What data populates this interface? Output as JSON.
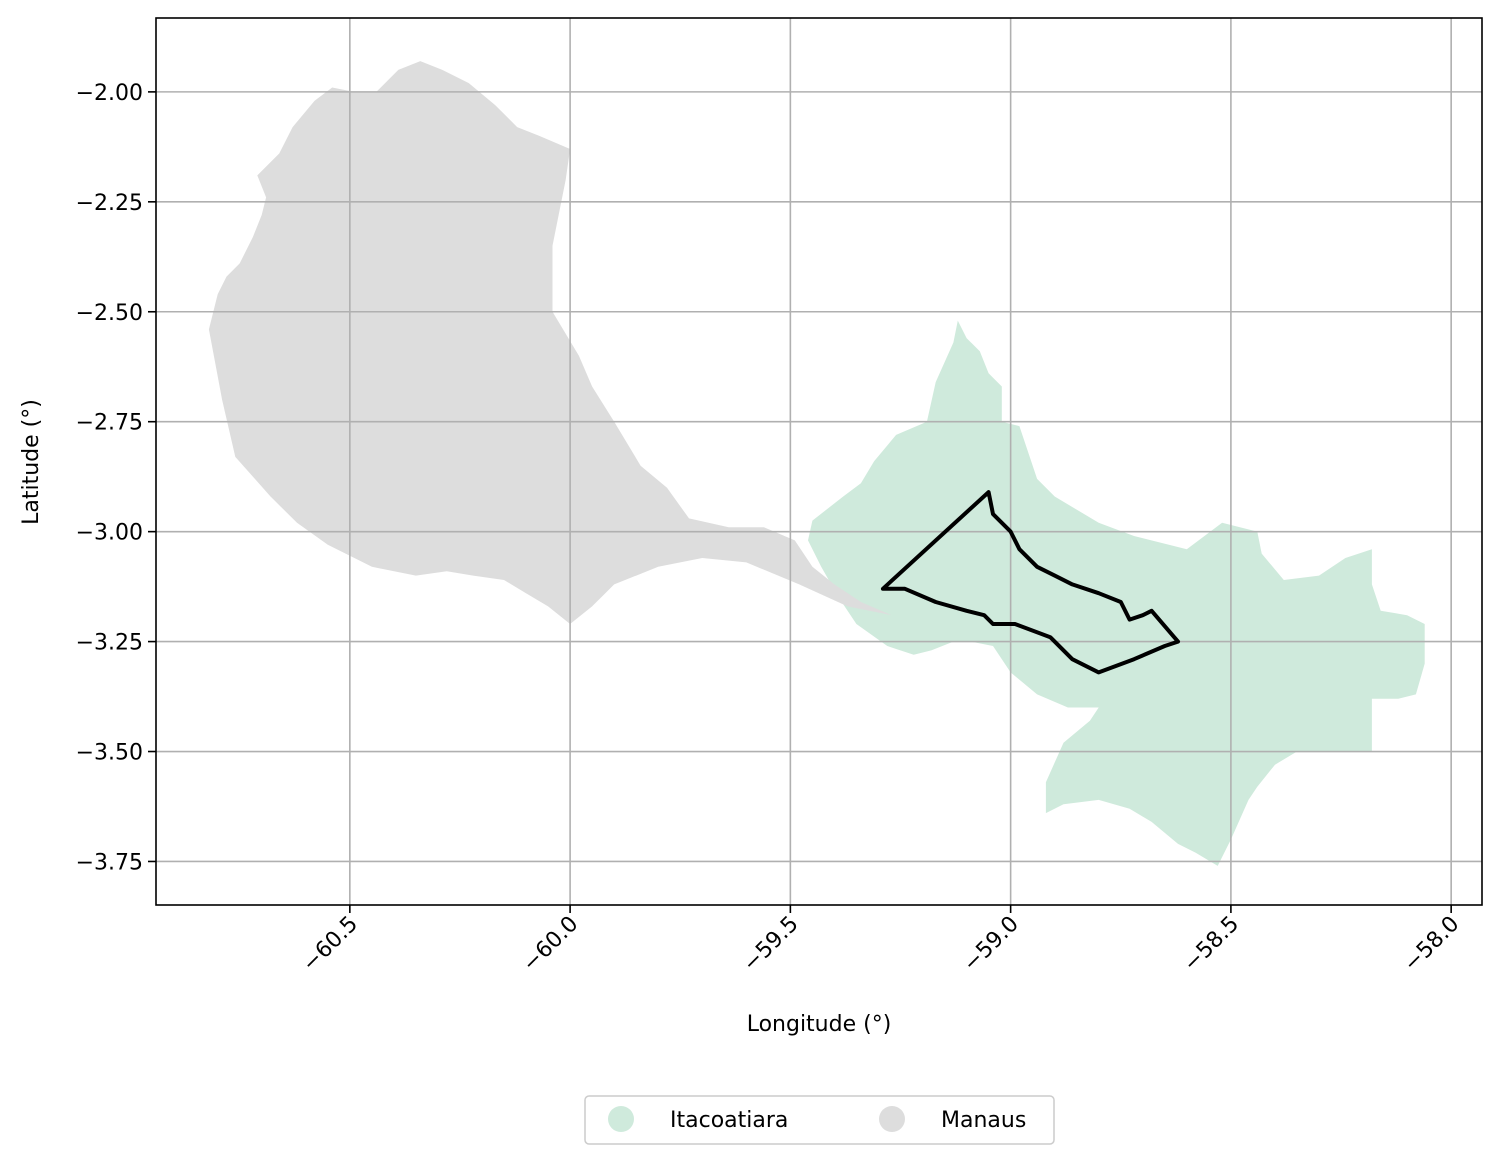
{
  "chart_data": {
    "type": "map",
    "xlabel": "Longitude (°)",
    "ylabel": "Latitude (°)",
    "xlim": [
      -60.94,
      -57.93
    ],
    "ylim": [
      -3.849,
      -1.832
    ],
    "x_ticks": [
      -60.5,
      -60.0,
      -59.5,
      -59.0,
      -58.5,
      -58.0
    ],
    "x_tick_labels": [
      "−60.5",
      "−60.0",
      "−59.5",
      "−59.0",
      "−58.5",
      "−58.0"
    ],
    "y_ticks": [
      -2.0,
      -2.25,
      -2.5,
      -2.75,
      -3.0,
      -3.25,
      -3.5,
      -3.75
    ],
    "y_tick_labels": [
      "−2.00",
      "−2.25",
      "−2.50",
      "−2.75",
      "−3.00",
      "−3.25",
      "−3.50",
      "−3.75"
    ],
    "grid": true,
    "legend_position": "bottom-center",
    "regions": [
      {
        "name": "Itacoatiara",
        "color": "#cfeadc",
        "outline": [
          [
            -59.45,
            -2.975
          ],
          [
            -59.38,
            -2.92
          ],
          [
            -59.34,
            -2.89
          ],
          [
            -59.31,
            -2.84
          ],
          [
            -59.26,
            -2.78
          ],
          [
            -59.19,
            -2.75
          ],
          [
            -59.17,
            -2.66
          ],
          [
            -59.13,
            -2.57
          ],
          [
            -59.12,
            -2.52
          ],
          [
            -59.1,
            -2.56
          ],
          [
            -59.07,
            -2.59
          ],
          [
            -59.05,
            -2.64
          ],
          [
            -59.02,
            -2.67
          ],
          [
            -59.02,
            -2.75
          ],
          [
            -58.98,
            -2.76
          ],
          [
            -58.94,
            -2.88
          ],
          [
            -58.9,
            -2.92
          ],
          [
            -58.8,
            -2.98
          ],
          [
            -58.72,
            -3.01
          ],
          [
            -58.6,
            -3.04
          ],
          [
            -58.52,
            -2.98
          ],
          [
            -58.44,
            -3.0
          ],
          [
            -58.43,
            -3.05
          ],
          [
            -58.38,
            -3.11
          ],
          [
            -58.3,
            -3.1
          ],
          [
            -58.24,
            -3.06
          ],
          [
            -58.18,
            -3.04
          ],
          [
            -58.18,
            -3.12
          ],
          [
            -58.16,
            -3.18
          ],
          [
            -58.1,
            -3.19
          ],
          [
            -58.06,
            -3.21
          ],
          [
            -58.06,
            -3.3
          ],
          [
            -58.08,
            -3.37
          ],
          [
            -58.12,
            -3.38
          ],
          [
            -58.18,
            -3.38
          ],
          [
            -58.18,
            -3.5
          ],
          [
            -58.35,
            -3.5
          ],
          [
            -58.4,
            -3.53
          ],
          [
            -58.44,
            -3.58
          ],
          [
            -58.46,
            -3.61
          ],
          [
            -58.5,
            -3.7
          ],
          [
            -58.53,
            -3.76
          ],
          [
            -58.58,
            -3.73
          ],
          [
            -58.62,
            -3.71
          ],
          [
            -58.68,
            -3.66
          ],
          [
            -58.73,
            -3.63
          ],
          [
            -58.8,
            -3.61
          ],
          [
            -58.88,
            -3.62
          ],
          [
            -58.92,
            -3.64
          ],
          [
            -58.92,
            -3.57
          ],
          [
            -58.88,
            -3.48
          ],
          [
            -58.82,
            -3.43
          ],
          [
            -58.8,
            -3.4
          ],
          [
            -58.87,
            -3.4
          ],
          [
            -58.94,
            -3.37
          ],
          [
            -59.0,
            -3.32
          ],
          [
            -59.04,
            -3.26
          ],
          [
            -59.09,
            -3.25
          ],
          [
            -59.13,
            -3.25
          ],
          [
            -59.18,
            -3.27
          ],
          [
            -59.22,
            -3.28
          ],
          [
            -59.28,
            -3.26
          ],
          [
            -59.35,
            -3.21
          ],
          [
            -59.39,
            -3.15
          ],
          [
            -59.43,
            -3.08
          ],
          [
            -59.46,
            -3.02
          ]
        ]
      },
      {
        "name": "Manaus",
        "color": "#dddddd",
        "outline": [
          [
            -60.82,
            -2.54
          ],
          [
            -60.8,
            -2.46
          ],
          [
            -60.78,
            -2.42
          ],
          [
            -60.75,
            -2.39
          ],
          [
            -60.72,
            -2.33
          ],
          [
            -60.7,
            -2.28
          ],
          [
            -60.69,
            -2.24
          ],
          [
            -60.71,
            -2.19
          ],
          [
            -60.66,
            -2.14
          ],
          [
            -60.63,
            -2.08
          ],
          [
            -60.58,
            -2.02
          ],
          [
            -60.54,
            -1.99
          ],
          [
            -60.49,
            -2.0
          ],
          [
            -60.44,
            -2.0
          ],
          [
            -60.39,
            -1.95
          ],
          [
            -60.34,
            -1.93
          ],
          [
            -60.29,
            -1.95
          ],
          [
            -60.23,
            -1.98
          ],
          [
            -60.17,
            -2.03
          ],
          [
            -60.12,
            -2.08
          ],
          [
            -60.07,
            -2.1
          ],
          [
            -60.0,
            -2.13
          ],
          [
            -60.01,
            -2.2
          ],
          [
            -60.04,
            -2.35
          ],
          [
            -60.04,
            -2.5
          ],
          [
            -59.98,
            -2.6
          ],
          [
            -59.95,
            -2.67
          ],
          [
            -59.9,
            -2.75
          ],
          [
            -59.84,
            -2.85
          ],
          [
            -59.78,
            -2.9
          ],
          [
            -59.73,
            -2.97
          ],
          [
            -59.64,
            -2.99
          ],
          [
            -59.56,
            -2.99
          ],
          [
            -59.49,
            -3.02
          ],
          [
            -59.45,
            -3.08
          ],
          [
            -59.4,
            -3.12
          ],
          [
            -59.34,
            -3.16
          ],
          [
            -59.27,
            -3.19
          ],
          [
            -59.37,
            -3.17
          ],
          [
            -59.48,
            -3.12
          ],
          [
            -59.6,
            -3.07
          ],
          [
            -59.7,
            -3.06
          ],
          [
            -59.8,
            -3.08
          ],
          [
            -59.9,
            -3.12
          ],
          [
            -59.95,
            -3.17
          ],
          [
            -60.0,
            -3.21
          ],
          [
            -60.05,
            -3.17
          ],
          [
            -60.1,
            -3.14
          ],
          [
            -60.15,
            -3.11
          ],
          [
            -60.22,
            -3.1
          ],
          [
            -60.28,
            -3.09
          ],
          [
            -60.35,
            -3.1
          ],
          [
            -60.45,
            -3.08
          ],
          [
            -60.55,
            -3.03
          ],
          [
            -60.62,
            -2.98
          ],
          [
            -60.68,
            -2.92
          ],
          [
            -60.76,
            -2.83
          ],
          [
            -60.79,
            -2.7
          ]
        ]
      }
    ],
    "outline": [
      [
        -59.29,
        -3.13
      ],
      [
        -59.05,
        -2.91
      ],
      [
        -59.04,
        -2.96
      ],
      [
        -59.0,
        -3.0
      ],
      [
        -58.98,
        -3.04
      ],
      [
        -58.94,
        -3.08
      ],
      [
        -58.9,
        -3.1
      ],
      [
        -58.86,
        -3.12
      ],
      [
        -58.8,
        -3.14
      ],
      [
        -58.75,
        -3.16
      ],
      [
        -58.73,
        -3.2
      ],
      [
        -58.7,
        -3.19
      ],
      [
        -58.68,
        -3.18
      ],
      [
        -58.62,
        -3.25
      ],
      [
        -58.65,
        -3.26
      ],
      [
        -58.72,
        -3.29
      ],
      [
        -58.8,
        -3.32
      ],
      [
        -58.86,
        -3.29
      ],
      [
        -58.91,
        -3.24
      ],
      [
        -58.99,
        -3.21
      ],
      [
        -59.04,
        -3.21
      ],
      [
        -59.06,
        -3.19
      ],
      [
        -59.1,
        -3.18
      ],
      [
        -59.17,
        -3.16
      ],
      [
        -59.24,
        -3.13
      ]
    ]
  },
  "legend": {
    "items": [
      {
        "label": "Itacoatiara",
        "color": "#cfeadc"
      },
      {
        "label": "Manaus",
        "color": "#dddddd"
      }
    ]
  }
}
